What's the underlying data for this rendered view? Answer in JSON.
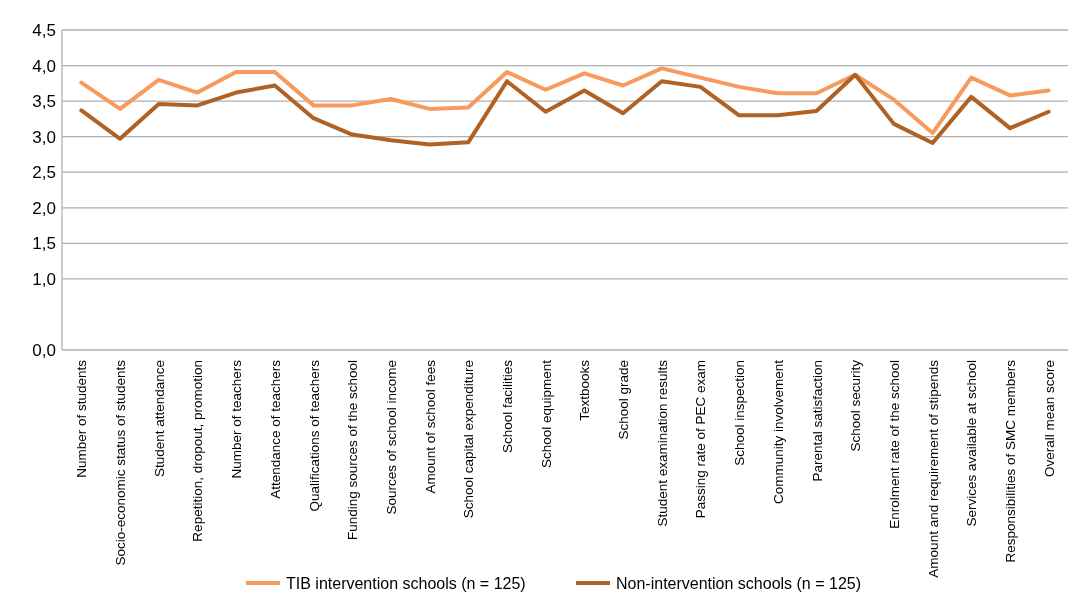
{
  "chart_data": {
    "type": "line",
    "categories": [
      "Number of students",
      "Socio-economic status of students",
      "Student attendance",
      "Repetition, dropout, promotion",
      "Number of teachers",
      "Attendance of teachers",
      "Qualifications of teachers",
      "Funding sources of the school",
      "Sources of school income",
      "Amount of school fees",
      "School capital expenditure",
      "School facilities",
      "School equipment",
      "Textbooks",
      "School grade",
      "Student examination results",
      "Passing rate of PEC exam",
      "School inspection",
      "Community involvement",
      "Parental satisfaction",
      "School security",
      "Enrolment rate of the school",
      "Amount and requirement of stipends",
      "Services available at school",
      "Responsibilities of SMC members",
      "Overall mean score"
    ],
    "series": [
      {
        "name": "TIB intervention schools (n = 125)",
        "color": "#f79a5e",
        "values": [
          3.76,
          3.39,
          3.8,
          3.62,
          3.91,
          3.91,
          3.44,
          3.44,
          3.53,
          3.39,
          3.41,
          3.91,
          3.66,
          3.89,
          3.72,
          3.96,
          3.83,
          3.7,
          3.61,
          3.61,
          3.87,
          3.52,
          3.05,
          3.83,
          3.58,
          3.65
        ]
      },
      {
        "name": "Non-intervention schools (n = 125)",
        "color": "#b06124",
        "values": [
          3.37,
          2.97,
          3.46,
          3.44,
          3.62,
          3.72,
          3.26,
          3.03,
          2.95,
          2.89,
          2.92,
          3.78,
          3.35,
          3.65,
          3.33,
          3.78,
          3.7,
          3.3,
          3.3,
          3.36,
          3.87,
          3.18,
          2.91,
          3.56,
          3.12,
          3.35
        ]
      }
    ],
    "ylim": [
      0,
      4.5
    ],
    "yticks": [
      {
        "value": 0,
        "label": "0,0"
      },
      {
        "value": 1.0,
        "label": "1,0"
      },
      {
        "value": 1.5,
        "label": "1,5"
      },
      {
        "value": 2.0,
        "label": "2,0"
      },
      {
        "value": 2.5,
        "label": "2,5"
      },
      {
        "value": 3.0,
        "label": "3,0"
      },
      {
        "value": 3.5,
        "label": "3,5"
      },
      {
        "value": 4.0,
        "label": "4,0"
      },
      {
        "value": 4.5,
        "label": "4,5"
      }
    ],
    "grid": "y",
    "legend": "bottom",
    "marker": "none",
    "line_style": "solid"
  }
}
